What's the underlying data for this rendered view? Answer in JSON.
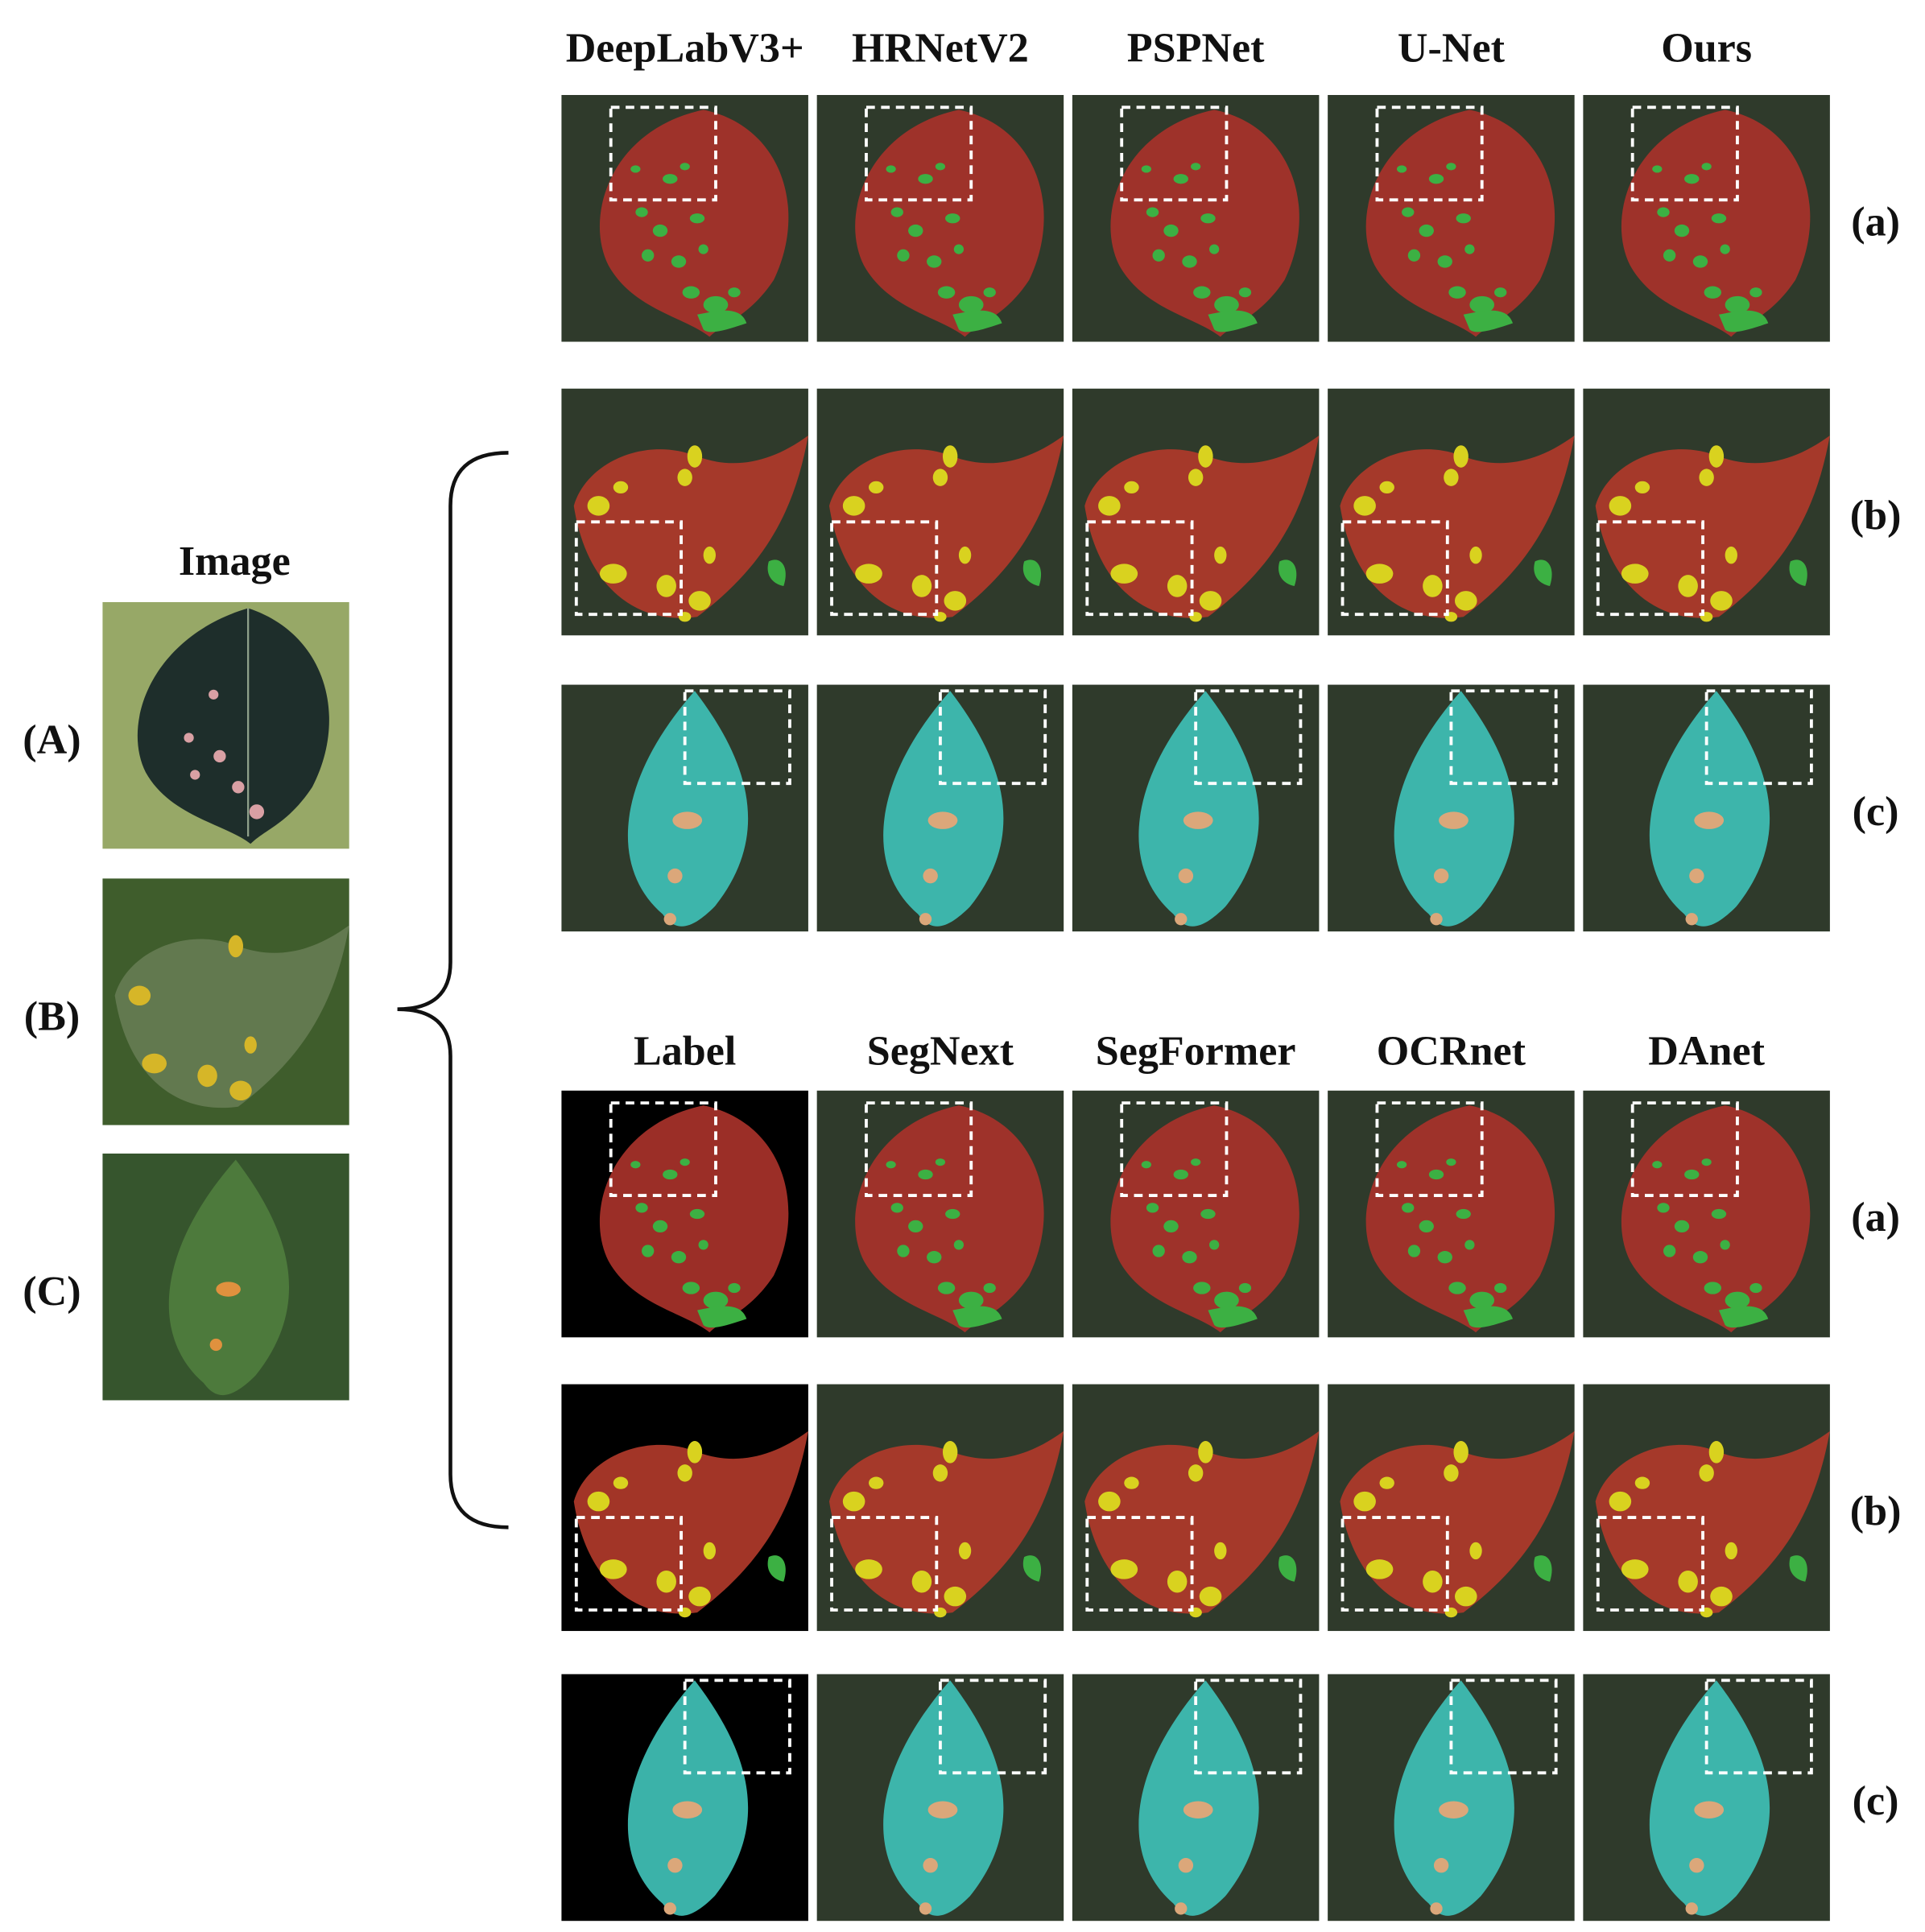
{
  "image_column": {
    "title": "Image",
    "rows": [
      "(A)",
      "(B)",
      "(C)"
    ]
  },
  "top_group": {
    "methods": [
      "DeepLabV3+",
      "HRNetV2",
      "PSPNet",
      "U-Net",
      "Ours"
    ],
    "rows": [
      "(a)",
      "(b)",
      "(c)"
    ]
  },
  "bottom_group": {
    "methods": [
      "Label",
      "SegNext",
      "SegFormer",
      "OCRnet",
      "DAnet"
    ],
    "rows": [
      "(a)",
      "(b)",
      "(c)"
    ]
  }
}
